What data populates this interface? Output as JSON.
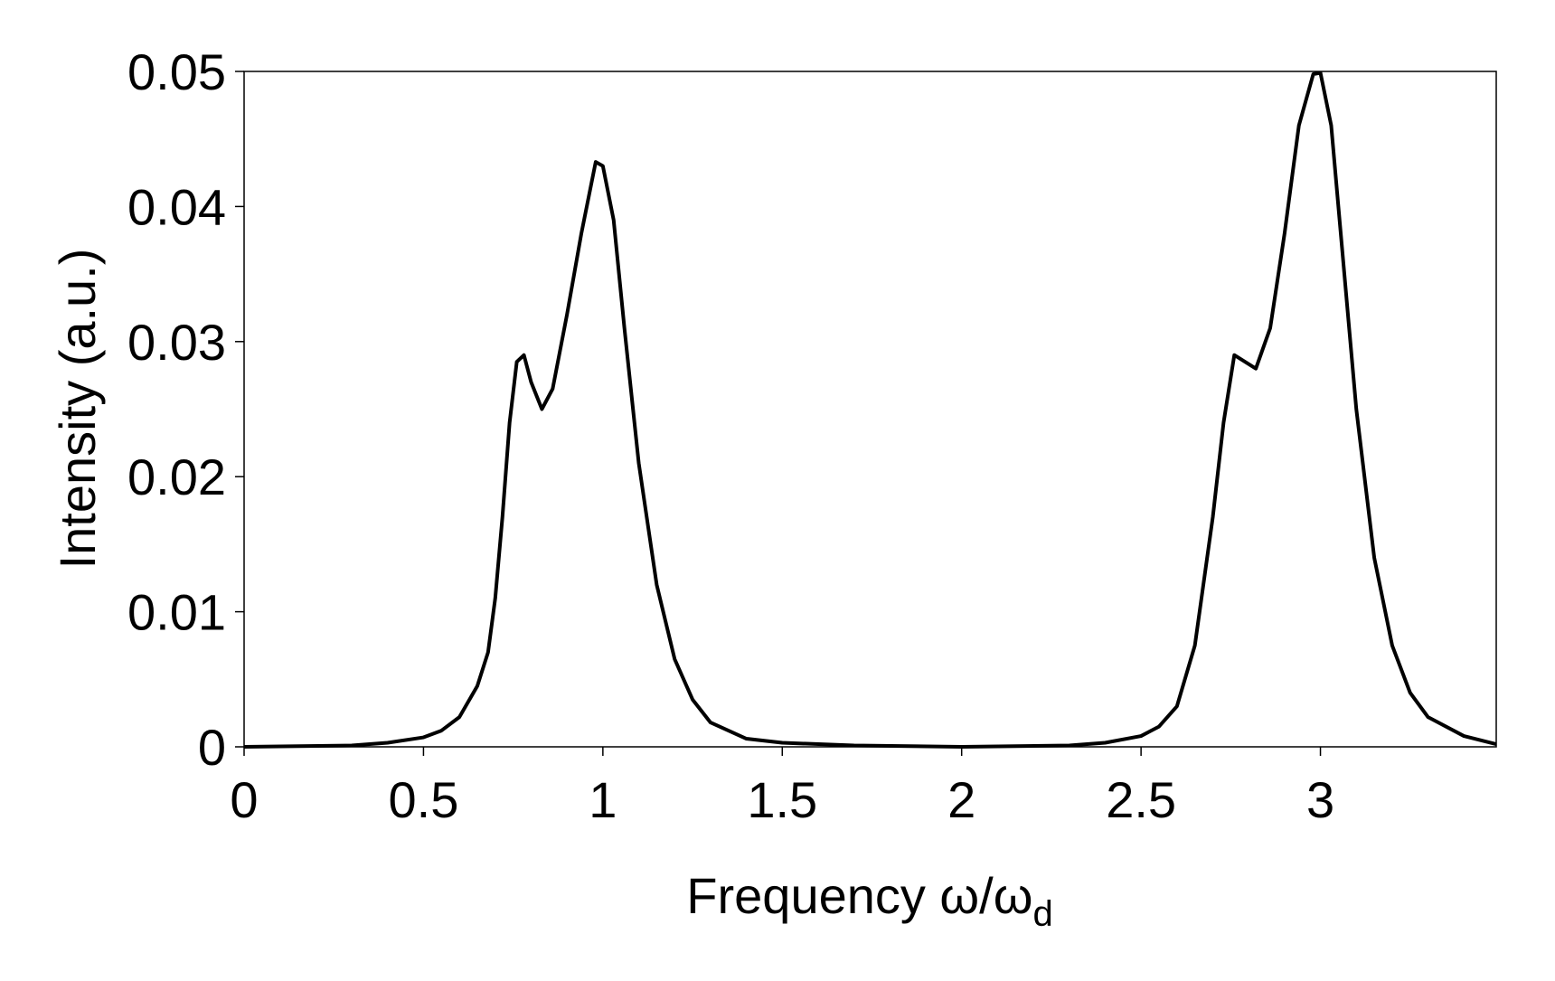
{
  "chart_data": {
    "type": "line",
    "xlabel": "Frequency ω/ω",
    "xlabel_sub": "d",
    "ylabel": "Intensity (a.u.)",
    "xlim": [
      0,
      3.49
    ],
    "ylim": [
      0,
      0.05
    ],
    "xticks": [
      0,
      0.5,
      1,
      1.5,
      2,
      2.5,
      3
    ],
    "yticks": [
      0,
      0.01,
      0.02,
      0.03,
      0.04,
      0.05
    ],
    "grid": false,
    "series": [
      {
        "color": "#000000",
        "x": [
          0,
          0.3,
          0.4,
          0.5,
          0.55,
          0.6,
          0.65,
          0.68,
          0.7,
          0.72,
          0.74,
          0.76,
          0.78,
          0.8,
          0.83,
          0.86,
          0.9,
          0.94,
          0.98,
          1.0,
          1.03,
          1.06,
          1.1,
          1.15,
          1.2,
          1.25,
          1.3,
          1.4,
          1.5,
          1.7,
          2.0,
          2.3,
          2.4,
          2.5,
          2.55,
          2.6,
          2.65,
          2.7,
          2.73,
          2.76,
          2.79,
          2.82,
          2.86,
          2.9,
          2.94,
          2.98,
          3.0,
          3.03,
          3.06,
          3.1,
          3.15,
          3.2,
          3.25,
          3.3,
          3.4,
          3.49
        ],
        "values": [
          0,
          0.0001,
          0.0003,
          0.0007,
          0.0012,
          0.0022,
          0.0045,
          0.007,
          0.011,
          0.017,
          0.024,
          0.0285,
          0.029,
          0.027,
          0.025,
          0.0265,
          0.032,
          0.038,
          0.0433,
          0.043,
          0.039,
          0.031,
          0.021,
          0.012,
          0.0065,
          0.0035,
          0.0018,
          0.0006,
          0.0003,
          0.0001,
          0,
          0.0001,
          0.0003,
          0.0008,
          0.0015,
          0.003,
          0.0075,
          0.017,
          0.024,
          0.029,
          0.0285,
          0.028,
          0.031,
          0.038,
          0.046,
          0.0498,
          0.0499,
          0.046,
          0.037,
          0.025,
          0.014,
          0.0075,
          0.004,
          0.0022,
          0.0008,
          0.0002
        ]
      }
    ]
  }
}
